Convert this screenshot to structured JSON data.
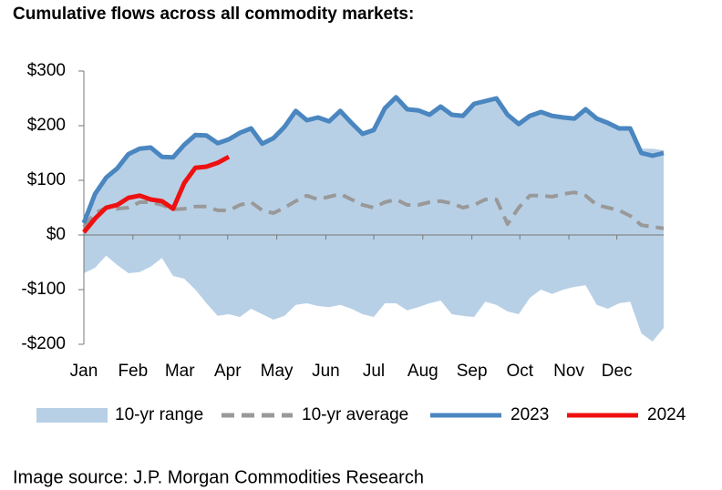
{
  "chart_data": {
    "type": "line",
    "title": "Cumulative flows across all commodity markets:",
    "source": "Image source: J.P. Morgan Commodities Research",
    "x": [
      0,
      1,
      2,
      3,
      4,
      5,
      6,
      7,
      8,
      9,
      10,
      11,
      12,
      13,
      14,
      15,
      16,
      17,
      18,
      19,
      20,
      21,
      22,
      23,
      24,
      25,
      26,
      27,
      28,
      29,
      30,
      31,
      32,
      33,
      34,
      35,
      36,
      37,
      38,
      39,
      40,
      41,
      42,
      43,
      44,
      45,
      46,
      47,
      48,
      49,
      50,
      51,
      52
    ],
    "xlim": [
      0,
      52
    ],
    "xticks": [
      {
        "value": 0,
        "label": "Jan"
      },
      {
        "value": 4.4,
        "label": "Feb"
      },
      {
        "value": 8.6,
        "label": "Mar"
      },
      {
        "value": 12.9,
        "label": "Apr"
      },
      {
        "value": 17.3,
        "label": "May"
      },
      {
        "value": 21.7,
        "label": "Jun"
      },
      {
        "value": 26,
        "label": "Jul"
      },
      {
        "value": 30.4,
        "label": "Aug"
      },
      {
        "value": 34.8,
        "label": "Sep"
      },
      {
        "value": 39.1,
        "label": "Oct"
      },
      {
        "value": 43.5,
        "label": "Nov"
      },
      {
        "value": 47.8,
        "label": "Dec"
      }
    ],
    "ylim": [
      -200,
      300
    ],
    "yticks": [
      {
        "value": -200,
        "label": "-$200"
      },
      {
        "value": -100,
        "label": "-$100"
      },
      {
        "value": 0,
        "label": "$0"
      },
      {
        "value": 100,
        "label": "$100"
      },
      {
        "value": 200,
        "label": "$200"
      },
      {
        "value": 300,
        "label": "$300"
      }
    ],
    "range": {
      "name": "10-yr range",
      "color": "#b8d0e6",
      "high": [
        30,
        78,
        108,
        125,
        150,
        160,
        162,
        146,
        144,
        167,
        185,
        184,
        170,
        177,
        189,
        197,
        170,
        180,
        200,
        229,
        212,
        217,
        210,
        229,
        208,
        188,
        195,
        234,
        254,
        232,
        230,
        222,
        237,
        222,
        220,
        242,
        247,
        252,
        222,
        205,
        220,
        227,
        220,
        217,
        215,
        232,
        215,
        207,
        197,
        197,
        158,
        158,
        155
      ],
      "low": [
        -70,
        -60,
        -38,
        -55,
        -70,
        -68,
        -58,
        -42,
        -75,
        -80,
        -100,
        -125,
        -148,
        -145,
        -150,
        -135,
        -145,
        -155,
        -148,
        -128,
        -125,
        -130,
        -132,
        -128,
        -135,
        -145,
        -150,
        -125,
        -125,
        -138,
        -132,
        -125,
        -120,
        -145,
        -148,
        -150,
        -122,
        -128,
        -140,
        -145,
        -115,
        -100,
        -108,
        -100,
        -95,
        -92,
        -128,
        -135,
        -125,
        -122,
        -180,
        -195,
        -170
      ]
    },
    "series": [
      {
        "name": "10-yr average",
        "color": "#999999",
        "dashed": true,
        "values": [
          15,
          40,
          50,
          48,
          50,
          60,
          60,
          55,
          47,
          48,
          52,
          52,
          45,
          45,
          55,
          60,
          45,
          40,
          50,
          62,
          72,
          65,
          70,
          75,
          65,
          55,
          50,
          60,
          65,
          55,
          55,
          60,
          62,
          58,
          50,
          55,
          65,
          65,
          20,
          50,
          72,
          72,
          70,
          75,
          78,
          72,
          55,
          50,
          45,
          35,
          18,
          15,
          12
        ]
      },
      {
        "name": "2023",
        "color": "#4a86c0",
        "values": [
          22,
          75,
          105,
          122,
          148,
          158,
          160,
          143,
          142,
          165,
          183,
          182,
          168,
          175,
          187,
          195,
          167,
          177,
          198,
          227,
          210,
          215,
          208,
          227,
          205,
          185,
          192,
          232,
          252,
          230,
          228,
          220,
          235,
          220,
          218,
          240,
          245,
          250,
          220,
          203,
          218,
          225,
          218,
          215,
          213,
          230,
          213,
          205,
          195,
          195,
          150,
          145,
          150
        ]
      },
      {
        "name": "2024",
        "color": "#ee1111",
        "values": [
          5,
          30,
          50,
          55,
          68,
          72,
          65,
          62,
          48,
          95,
          123,
          125,
          132,
          143,
          null,
          null,
          null,
          null,
          null,
          null,
          null,
          null,
          null,
          null,
          null,
          null,
          null,
          null,
          null,
          null,
          null,
          null,
          null,
          null,
          null,
          null,
          null,
          null,
          null,
          null,
          null,
          null,
          null,
          null,
          null,
          null,
          null,
          null,
          null,
          null,
          null,
          null,
          null
        ]
      }
    ]
  }
}
